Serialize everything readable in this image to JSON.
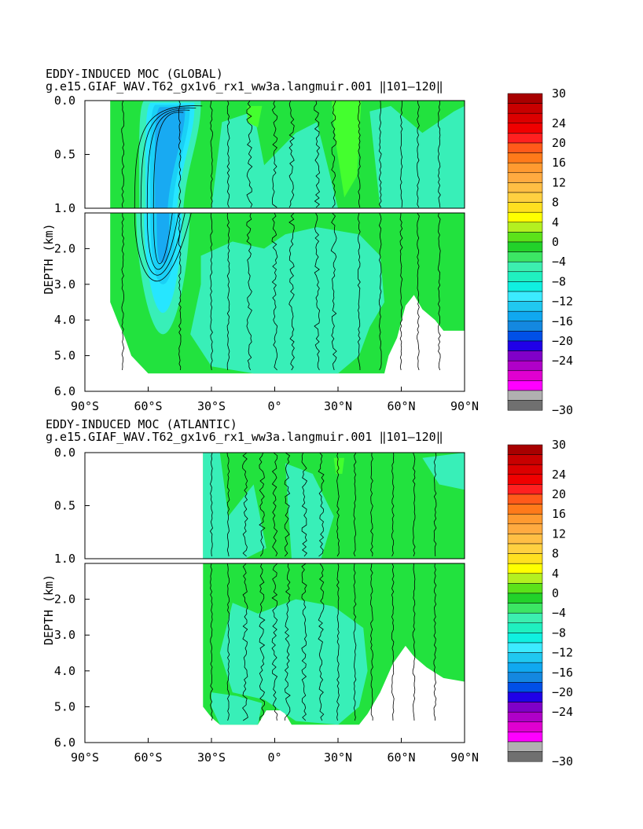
{
  "chart_data": [
    {
      "type": "contour",
      "title": "EDDY-INDUCED MOC (GLOBAL)",
      "subtitle": "g.e15.GIAF_WAV.T62_gx1v6_rx1_ww3a.langmuir.001 ‖101–120‖",
      "xlabel": "",
      "ylabel": "DEPTH (km)",
      "x_ticks": [
        "90°S",
        "60°S",
        "30°S",
        "0°",
        "30°N",
        "60°N",
        "90°N"
      ],
      "y_ticks_upper": [
        "0.0",
        "0.5",
        "1.0"
      ],
      "y_ticks_lower": [
        "2.0",
        "3.0",
        "4.0",
        "5.0",
        "6.0"
      ],
      "xlim": [
        -90,
        90
      ],
      "ylim_km": [
        0,
        6
      ],
      "upper_panel_km": [
        0,
        1
      ],
      "lower_panel_km": [
        1,
        6
      ],
      "ocean_west_edge_deg": -78,
      "feature_minimum": {
        "lat": -55,
        "depth_km": 0.3,
        "value": -12
      },
      "colorbar_labels": [
        "30",
        "24",
        "20",
        "16",
        "12",
        "8",
        "4",
        "0",
        "−4",
        "−8",
        "−12",
        "−16",
        "−20",
        "−24",
        "−30"
      ]
    },
    {
      "type": "contour",
      "title": "EDDY-INDUCED MOC (ATLANTIC)",
      "subtitle": "g.e15.GIAF_WAV.T62_gx1v6_rx1_ww3a.langmuir.001 ‖101–120‖",
      "xlabel": "",
      "ylabel": "DEPTH (km)",
      "x_ticks": [
        "90°S",
        "60°S",
        "30°S",
        "0°",
        "30°N",
        "60°N",
        "90°N"
      ],
      "y_ticks_upper": [
        "0.0",
        "0.5",
        "1.0"
      ],
      "y_ticks_lower": [
        "2.0",
        "3.0",
        "4.0",
        "5.0",
        "6.0"
      ],
      "xlim": [
        -90,
        90
      ],
      "ylim_km": [
        0,
        6
      ],
      "upper_panel_km": [
        0,
        1
      ],
      "lower_panel_km": [
        1,
        6
      ],
      "ocean_west_edge_deg": -34,
      "colorbar_labels": [
        "30",
        "24",
        "20",
        "16",
        "12",
        "8",
        "4",
        "0",
        "−4",
        "−8",
        "−12",
        "−16",
        "−20",
        "−24",
        "−30"
      ]
    }
  ],
  "colorbar": {
    "colors": [
      "#a80000",
      "#c80000",
      "#dc0000",
      "#f00000",
      "#ff2020",
      "#ff5a1a",
      "#ff7a1a",
      "#ff9a30",
      "#ffaa40",
      "#ffbe44",
      "#ffd040",
      "#ffe020",
      "#ffff00",
      "#b4f020",
      "#5ce21a",
      "#22d22a",
      "#3ce664",
      "#3cefb0",
      "#20f0c0",
      "#10f0e0",
      "#3cebff",
      "#20c8f0",
      "#10a8f0",
      "#1488e0",
      "#0050e8",
      "#2000e8",
      "#8000c8",
      "#b000c8",
      "#e000d0",
      "#ff00ff",
      "#b0b0b0",
      "#707070"
    ]
  },
  "fill_colors": {
    "green": "#22e23e",
    "teal": "#38efb8",
    "bright_green": "#44ff2e",
    "cyan": "#26e6ff",
    "light_blue": "#1ad0f6",
    "blue": "#18aaf2"
  }
}
